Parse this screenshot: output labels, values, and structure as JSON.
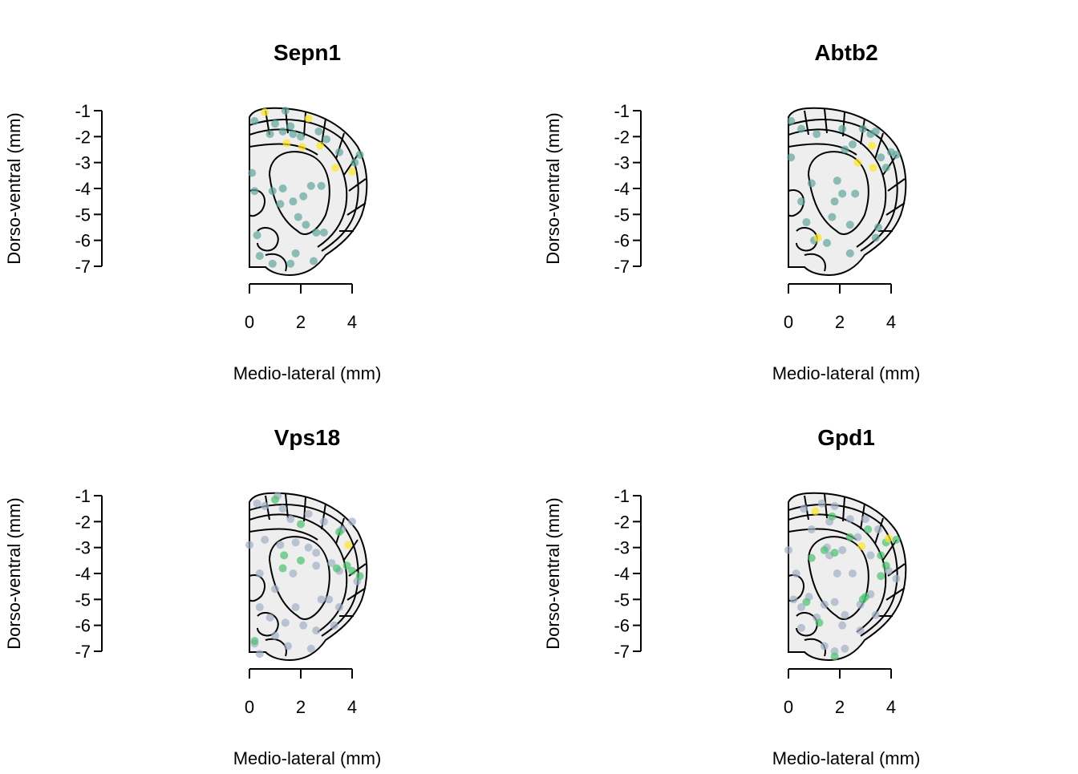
{
  "chart_data": [
    {
      "type": "scatter",
      "title": "Sepn1",
      "xlabel": "Medio-lateral (mm)",
      "ylabel": "Dorso-ventral (mm)",
      "xlim": [
        0,
        4
      ],
      "ylim": [
        -7,
        -1
      ],
      "xticks": [
        0,
        2,
        4
      ],
      "yticks": [
        -7,
        -6,
        -5,
        -4,
        -3,
        -2,
        -1
      ],
      "series": [
        {
          "color": "#5fa59c",
          "x": [
            0.2,
            1.4,
            1.0,
            0.8,
            1.3,
            1.7,
            1.6,
            2.0,
            2.7,
            3.0,
            3.5,
            4.3,
            4.1,
            0.1,
            0.2,
            0.9,
            1.3,
            1.7,
            2.1,
            2.4,
            2.8,
            1.2,
            1.9,
            2.2,
            2.6,
            2.9,
            0.3,
            0.4,
            1.8,
            1.6,
            2.5,
            0.9
          ],
          "values": [
            -1.4,
            -1.0,
            -1.5,
            -1.9,
            -1.8,
            -1.9,
            -1.6,
            -2.0,
            -1.8,
            -2.1,
            -2.6,
            -2.7,
            -3.0,
            -3.4,
            -4.1,
            -4.1,
            -4.0,
            -4.5,
            -4.3,
            -3.9,
            -3.9,
            -4.6,
            -5.1,
            -5.4,
            -5.7,
            -5.7,
            -5.8,
            -6.6,
            -6.5,
            -6.9,
            -6.8,
            -6.9
          ]
        },
        {
          "color": "#fde725",
          "x": [
            0.6,
            2.3,
            1.45,
            2.05,
            2.75,
            3.35,
            4.0
          ],
          "values": [
            -1.06,
            -1.3,
            -2.25,
            -2.4,
            -2.35,
            -3.2,
            -3.35
          ]
        }
      ]
    },
    {
      "type": "scatter",
      "title": "Abtb2",
      "xlabel": "Medio-lateral (mm)",
      "ylabel": "Dorso-ventral (mm)",
      "xlim": [
        0,
        4
      ],
      "ylim": [
        -7,
        -1
      ],
      "xticks": [
        0,
        2,
        4
      ],
      "yticks": [
        -7,
        -6,
        -5,
        -4,
        -3,
        -2,
        -1
      ],
      "series": [
        {
          "color": "#5fa59c",
          "x": [
            0.1,
            0.5,
            1.1,
            2.1,
            2.9,
            3.2,
            3.4,
            2.5,
            2.2,
            3.6,
            4.0,
            4.2,
            3.8,
            0.1,
            0.9,
            1.9,
            2.1,
            1.8,
            2.6,
            0.5,
            1.7,
            2.4,
            0.7,
            3.5,
            3.4,
            1.5,
            2.4,
            1.0
          ],
          "values": [
            -1.4,
            -1.7,
            -1.9,
            -1.7,
            -1.7,
            -1.9,
            -1.8,
            -2.3,
            -2.5,
            -2.8,
            -2.6,
            -2.7,
            -3.2,
            -2.8,
            -3.8,
            -3.7,
            -4.2,
            -4.5,
            -4.2,
            -4.5,
            -5.1,
            -5.4,
            -5.3,
            -5.5,
            -5.9,
            -6.1,
            -6.5,
            -6.0
          ]
        },
        {
          "color": "#fde725",
          "x": [
            3.25,
            2.7,
            3.3,
            1.15
          ],
          "values": [
            -2.35,
            -3.0,
            -3.2,
            -5.9
          ]
        }
      ]
    },
    {
      "type": "scatter",
      "title": "Vps18",
      "xlabel": "Medio-lateral (mm)",
      "ylabel": "Dorso-ventral (mm)",
      "xlim": [
        0,
        4
      ],
      "ylim": [
        -7,
        -1
      ],
      "xticks": [
        0,
        2,
        4
      ],
      "yticks": [
        -7,
        -6,
        -5,
        -4,
        -3,
        -2,
        -1
      ],
      "series": [
        {
          "color": "#a3afc4",
          "x": [
            0.3,
            0.6,
            1.1,
            1.3,
            1.6,
            2.3,
            2.9,
            3.6,
            4.0,
            0.0,
            0.6,
            1.2,
            1.8,
            2.3,
            2.6,
            3.2,
            3.5,
            4.2,
            0.4,
            1.7,
            2.6,
            1.0,
            1.8,
            2.8,
            3.1,
            3.5,
            0.4,
            0.8,
            1.4,
            2.1,
            2.6,
            3.3,
            0.2,
            1.0,
            2.4,
            0.4,
            1.5
          ],
          "values": [
            -1.3,
            -1.4,
            -1.0,
            -1.5,
            -1.9,
            -1.7,
            -2.0,
            -2.3,
            -2.0,
            -2.9,
            -2.7,
            -2.9,
            -2.8,
            -3.0,
            -3.2,
            -3.6,
            -3.9,
            -4.3,
            -4.0,
            -4.0,
            -3.7,
            -4.6,
            -5.3,
            -5.0,
            -5.0,
            -5.3,
            -5.3,
            -5.7,
            -5.9,
            -6.0,
            -6.2,
            -6.0,
            -6.7,
            -6.4,
            -6.9,
            -7.1,
            -6.8
          ]
        },
        {
          "color": "#4ac16d",
          "x": [
            1.0,
            1.35,
            2.0,
            1.3,
            3.4,
            3.8,
            4.3,
            4.0,
            2.0,
            3.5,
            0.2
          ],
          "values": [
            -1.15,
            -3.3,
            -3.5,
            -3.8,
            -3.8,
            -3.7,
            -4.1,
            -3.9,
            -2.1,
            -2.4,
            -6.6
          ]
        },
        {
          "color": "#fde725",
          "x": [
            3.85
          ],
          "values": [
            -2.9
          ]
        }
      ]
    },
    {
      "type": "scatter",
      "title": "Gpd1",
      "xlabel": "Medio-lateral (mm)",
      "ylabel": "Dorso-ventral (mm)",
      "xlim": [
        0,
        4
      ],
      "ylim": [
        -7,
        -1
      ],
      "xticks": [
        0,
        2,
        4
      ],
      "yticks": [
        -7,
        -6,
        -5,
        -4,
        -3,
        -2,
        -1
      ],
      "series": [
        {
          "color": "#a3afc4",
          "x": [
            0.6,
            1.3,
            1.8,
            2.4,
            3.0,
            3.5,
            0.0,
            0.9,
            1.6,
            2.1,
            2.7,
            3.2,
            3.9,
            4.2,
            0.3,
            1.6,
            1.5,
            1.9,
            2.5,
            0.8,
            1.4,
            1.8,
            2.2,
            2.8,
            3.2,
            0.2,
            0.5,
            1.1,
            2.1,
            2.8,
            3.4,
            0.5,
            1.4,
            2.2,
            1.8
          ],
          "values": [
            -1.5,
            -1.3,
            -1.4,
            -1.9,
            -1.9,
            -2.3,
            -3.1,
            -2.3,
            -2.0,
            -3.1,
            -2.6,
            -3.3,
            -3.9,
            -4.2,
            -4.0,
            -3.3,
            -3.0,
            -4.0,
            -4.0,
            -4.9,
            -5.2,
            -5.1,
            -5.6,
            -5.2,
            -4.8,
            -5.0,
            -5.3,
            -5.7,
            -6.0,
            -6.2,
            -5.6,
            -6.1,
            -6.8,
            -6.9,
            -7.0
          ]
        },
        {
          "color": "#4ac16d",
          "x": [
            1.7,
            0.9,
            1.4,
            1.8,
            2.4,
            3.1,
            3.8,
            4.2,
            3.6,
            3.8,
            3.6,
            3.0,
            0.7,
            1.2,
            1.8,
            2.9
          ],
          "values": [
            -1.8,
            -3.4,
            -3.1,
            -3.2,
            -2.6,
            -2.3,
            -2.8,
            -2.7,
            -3.3,
            -3.7,
            -4.1,
            -4.9,
            -5.1,
            -5.9,
            -7.2,
            -5.0
          ]
        },
        {
          "color": "#fde725",
          "x": [
            1.05,
            2.85,
            3.9
          ],
          "values": [
            -1.6,
            -2.95,
            -2.65
          ]
        }
      ]
    }
  ]
}
